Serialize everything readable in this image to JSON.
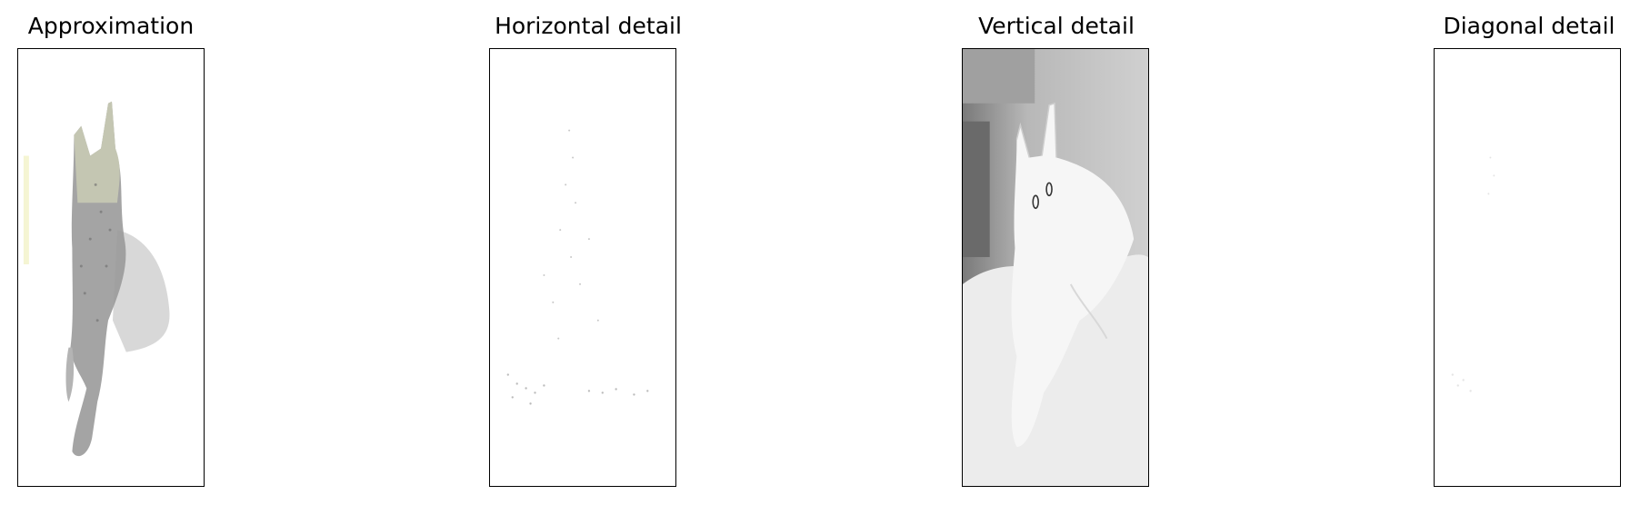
{
  "panels": [
    {
      "title": "Approximation"
    },
    {
      "title": "Horizontal detail"
    },
    {
      "title": "Vertical detail"
    },
    {
      "title": "Diagonal detail"
    }
  ]
}
